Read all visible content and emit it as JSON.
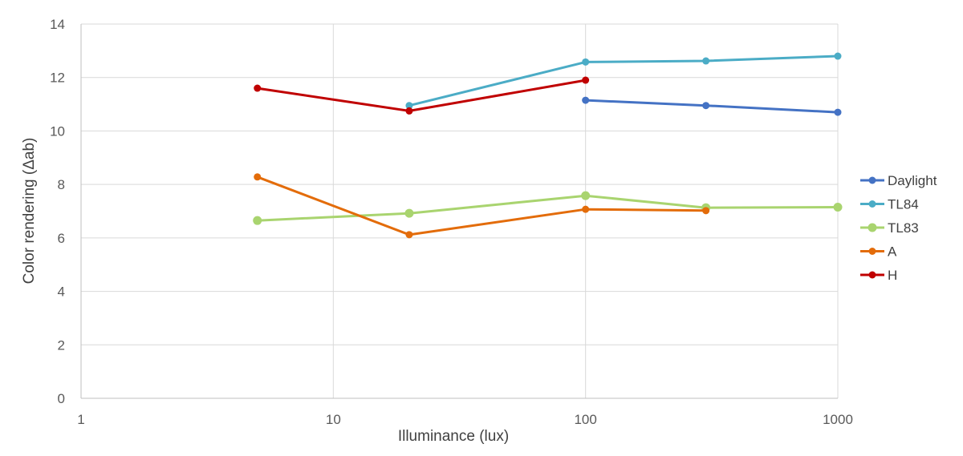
{
  "chart_data": {
    "type": "line",
    "title": "",
    "xlabel": "Illuminance (lux)",
    "ylabel": "Color rendering (Δab)",
    "x_scale": "log",
    "xlim": [
      1,
      1000
    ],
    "ylim": [
      0,
      14
    ],
    "x_ticks": [
      1,
      10,
      100,
      1000
    ],
    "y_ticks": [
      0,
      2,
      4,
      6,
      8,
      10,
      12,
      14
    ],
    "grid": true,
    "legend_position": "right",
    "series": [
      {
        "name": "Daylight",
        "color": "#4472C4",
        "x": [
          100,
          300,
          1000
        ],
        "y": [
          11.15,
          10.95,
          10.7
        ]
      },
      {
        "name": "TL84",
        "color": "#4BACC6",
        "x": [
          20,
          100,
          300,
          1000
        ],
        "y": [
          10.95,
          12.58,
          12.62,
          12.8
        ]
      },
      {
        "name": "TL83",
        "color": "#A9D46F",
        "x": [
          5,
          20,
          100,
          300,
          1000
        ],
        "y": [
          6.65,
          6.92,
          7.58,
          7.13,
          7.15
        ]
      },
      {
        "name": "A",
        "color": "#E36C0A",
        "x": [
          5,
          20,
          100,
          300
        ],
        "y": [
          8.28,
          6.12,
          7.07,
          7.02
        ]
      },
      {
        "name": "H",
        "color": "#C00000",
        "x": [
          5,
          20,
          100
        ],
        "y": [
          11.6,
          10.75,
          11.9
        ]
      }
    ]
  }
}
